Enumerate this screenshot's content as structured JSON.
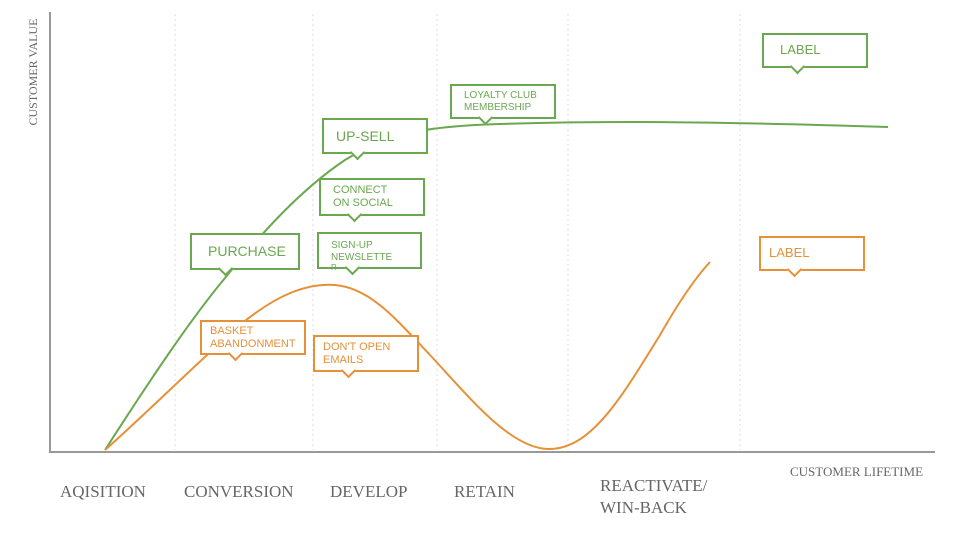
{
  "axes": {
    "y_label": "CUSTOMER VALUE",
    "x_label": "CUSTOMER LIFETIME"
  },
  "stages": [
    [
      "AQISITION"
    ],
    [
      "CONVERSION"
    ],
    [
      "DEVELOP"
    ],
    [
      "RETAIN"
    ],
    [
      "REACTIVATE/",
      "WIN-BACK"
    ]
  ],
  "green_callouts": [
    [
      "PURCHASE"
    ],
    [
      "UP-SELL"
    ],
    [
      "CONNECT",
      "ON SOCIAL"
    ],
    [
      "SIGN-UP",
      "NEWSLETTE",
      "R"
    ],
    [
      "LOYALTY CLUB",
      "MEMBERSHIP"
    ],
    [
      "LABEL"
    ]
  ],
  "orange_callouts": [
    [
      "BASKET",
      "ABANDONMENT"
    ],
    [
      "DON'T OPEN",
      "EMAILS"
    ],
    [
      "LABEL"
    ]
  ]
}
